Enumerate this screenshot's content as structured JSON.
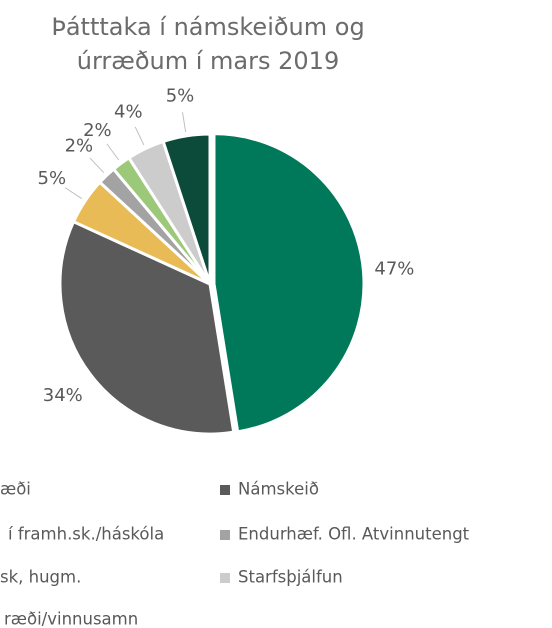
{
  "chart_data": {
    "type": "pie",
    "title": "Þátttaka í námskeiðum og úrræðum í mars 2019",
    "categories": [
      "æði",
      "Námskeið",
      "í framh.sk./háskóla",
      "Endurhæf. Ofl. Atvinnutengt",
      "sk, hugm.",
      "Starfsþjálfun",
      "ræði/vinnusamn"
    ],
    "values": [
      47,
      34,
      5,
      2,
      2,
      4,
      5
    ],
    "value_labels": [
      "47%",
      "34%",
      "5%",
      "2%",
      "2%",
      "4%",
      "5%"
    ],
    "colors": [
      "#00785a",
      "#5a5a5a",
      "#e9bb57",
      "#a3a3a3",
      "#9cc979",
      "#cccccc",
      "#0c4a3a"
    ]
  }
}
